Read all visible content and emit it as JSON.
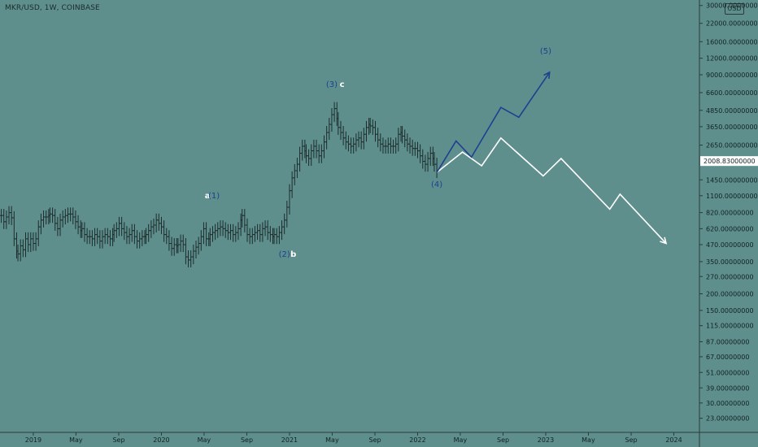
{
  "header": {
    "title": "MKR/USD, 1W, COINBASE",
    "scale_badge": "USD"
  },
  "price_badge": {
    "value": "2008.83000000",
    "bg": "#ffffff",
    "fg": "#000000"
  },
  "colors": {
    "background": "#5e8f8d",
    "candles": "#1d2c2c",
    "blue_path": "#1f3f8f",
    "white_path": "#ffffff",
    "axis_text": "#112222"
  },
  "chart_data": {
    "type": "line",
    "title": "MKR/USD, 1W, COINBASE",
    "y_scale": "log",
    "ylim": [
      18,
      33000
    ],
    "y_ticks": [
      {
        "v": 30000,
        "label": "30000.00000000"
      },
      {
        "v": 22000,
        "label": "22000.00000000"
      },
      {
        "v": 16000,
        "label": "16000.00000000"
      },
      {
        "v": 12000,
        "label": "12000.00000000"
      },
      {
        "v": 9000,
        "label": "9000.00000000"
      },
      {
        "v": 6600,
        "label": "6600.00000000"
      },
      {
        "v": 4850,
        "label": "4850.00000000"
      },
      {
        "v": 3650,
        "label": "3650.00000000"
      },
      {
        "v": 2650,
        "label": "2650.00000000"
      },
      {
        "v": 1450,
        "label": "1450.00000000"
      },
      {
        "v": 1100,
        "label": "1100.00000000"
      },
      {
        "v": 820,
        "label": "820.00000000"
      },
      {
        "v": 620,
        "label": "620.00000000"
      },
      {
        "v": 470,
        "label": "470.00000000"
      },
      {
        "v": 350,
        "label": "350.00000000"
      },
      {
        "v": 270,
        "label": "270.00000000"
      },
      {
        "v": 200,
        "label": "200.00000000"
      },
      {
        "v": 150,
        "label": "150.00000000"
      },
      {
        "v": 115,
        "label": "115.00000000"
      },
      {
        "v": 87,
        "label": "87.00000000"
      },
      {
        "v": 67,
        "label": "67.00000000"
      },
      {
        "v": 51,
        "label": "51.00000000"
      },
      {
        "v": 39,
        "label": "39.00000000"
      },
      {
        "v": 30,
        "label": "30.00000000"
      },
      {
        "v": 23,
        "label": "23.00000000"
      }
    ],
    "x_ticks": [
      {
        "t": 2019.0,
        "label": "2019"
      },
      {
        "t": 2019.333,
        "label": "May"
      },
      {
        "t": 2019.667,
        "label": "Sep"
      },
      {
        "t": 2020.0,
        "label": "2020"
      },
      {
        "t": 2020.333,
        "label": "May"
      },
      {
        "t": 2020.667,
        "label": "Sep"
      },
      {
        "t": 2021.0,
        "label": "2021"
      },
      {
        "t": 2021.333,
        "label": "May"
      },
      {
        "t": 2021.667,
        "label": "Sep"
      },
      {
        "t": 2022.0,
        "label": "2022"
      },
      {
        "t": 2022.333,
        "label": "May"
      },
      {
        "t": 2022.667,
        "label": "Sep"
      },
      {
        "t": 2023.0,
        "label": "2023"
      },
      {
        "t": 2023.333,
        "label": "May"
      },
      {
        "t": 2023.667,
        "label": "Sep"
      },
      {
        "t": 2024.0,
        "label": "2024"
      }
    ],
    "xlim": [
      2018.74,
      2024.2
    ],
    "last_price": 2008.83,
    "series": [
      {
        "values": [
          [
            2018.75,
            780
          ],
          [
            2018.77,
            700
          ],
          [
            2018.79,
            760
          ],
          [
            2018.81,
            820
          ],
          [
            2018.83,
            750
          ],
          [
            2018.85,
            520
          ],
          [
            2018.87,
            420
          ],
          [
            2018.88,
            400
          ],
          [
            2018.9,
            460
          ],
          [
            2018.92,
            430
          ],
          [
            2018.94,
            520
          ],
          [
            2018.96,
            470
          ],
          [
            2018.98,
            520
          ],
          [
            2019.0,
            480
          ],
          [
            2019.02,
            520
          ],
          [
            2019.04,
            640
          ],
          [
            2019.06,
            720
          ],
          [
            2019.08,
            760
          ],
          [
            2019.1,
            760
          ],
          [
            2019.12,
            780
          ],
          [
            2019.13,
            800
          ],
          [
            2019.15,
            780
          ],
          [
            2019.17,
            680
          ],
          [
            2019.19,
            620
          ],
          [
            2019.21,
            720
          ],
          [
            2019.23,
            760
          ],
          [
            2019.25,
            780
          ],
          [
            2019.27,
            800
          ],
          [
            2019.29,
            800
          ],
          [
            2019.31,
            760
          ],
          [
            2019.33,
            700
          ],
          [
            2019.35,
            640
          ],
          [
            2019.37,
            600
          ],
          [
            2019.38,
            620
          ],
          [
            2019.4,
            560
          ],
          [
            2019.42,
            540
          ],
          [
            2019.44,
            540
          ],
          [
            2019.46,
            520
          ],
          [
            2019.48,
            560
          ],
          [
            2019.5,
            540
          ],
          [
            2019.52,
            500
          ],
          [
            2019.54,
            540
          ],
          [
            2019.56,
            560
          ],
          [
            2019.58,
            540
          ],
          [
            2019.6,
            520
          ],
          [
            2019.62,
            560
          ],
          [
            2019.63,
            600
          ],
          [
            2019.65,
            620
          ],
          [
            2019.67,
            680
          ],
          [
            2019.69,
            620
          ],
          [
            2019.71,
            580
          ],
          [
            2019.73,
            540
          ],
          [
            2019.75,
            560
          ],
          [
            2019.77,
            600
          ],
          [
            2019.79,
            540
          ],
          [
            2019.81,
            500
          ],
          [
            2019.83,
            520
          ],
          [
            2019.85,
            540
          ],
          [
            2019.87,
            540
          ],
          [
            2019.88,
            560
          ],
          [
            2019.9,
            600
          ],
          [
            2019.92,
            640
          ],
          [
            2019.94,
            660
          ],
          [
            2019.96,
            720
          ],
          [
            2019.98,
            680
          ],
          [
            2020.0,
            640
          ],
          [
            2020.02,
            560
          ],
          [
            2020.04,
            540
          ],
          [
            2020.06,
            480
          ],
          [
            2020.08,
            440
          ],
          [
            2020.1,
            470
          ],
          [
            2020.12,
            460
          ],
          [
            2020.13,
            470
          ],
          [
            2020.15,
            500
          ],
          [
            2020.17,
            470
          ],
          [
            2020.19,
            380
          ],
          [
            2020.21,
            360
          ],
          [
            2020.23,
            380
          ],
          [
            2020.25,
            420
          ],
          [
            2020.27,
            450
          ],
          [
            2020.29,
            480
          ],
          [
            2020.31,
            540
          ],
          [
            2020.33,
            620
          ],
          [
            2020.35,
            520
          ],
          [
            2020.37,
            520
          ],
          [
            2020.38,
            560
          ],
          [
            2020.4,
            580
          ],
          [
            2020.42,
            600
          ],
          [
            2020.44,
            620
          ],
          [
            2020.46,
            640
          ],
          [
            2020.48,
            620
          ],
          [
            2020.5,
            600
          ],
          [
            2020.52,
            580
          ],
          [
            2020.54,
            600
          ],
          [
            2020.56,
            560
          ],
          [
            2020.58,
            580
          ],
          [
            2020.6,
            620
          ],
          [
            2020.62,
            720
          ],
          [
            2020.63,
            780
          ],
          [
            2020.65,
            660
          ],
          [
            2020.67,
            560
          ],
          [
            2020.69,
            540
          ],
          [
            2020.71,
            560
          ],
          [
            2020.73,
            580
          ],
          [
            2020.75,
            600
          ],
          [
            2020.77,
            560
          ],
          [
            2020.79,
            620
          ],
          [
            2020.81,
            640
          ],
          [
            2020.83,
            580
          ],
          [
            2020.85,
            560
          ],
          [
            2020.87,
            540
          ],
          [
            2020.88,
            560
          ],
          [
            2020.9,
            540
          ],
          [
            2020.92,
            580
          ],
          [
            2020.94,
            640
          ],
          [
            2020.96,
            720
          ],
          [
            2020.98,
            900
          ],
          [
            2021.0,
            1200
          ],
          [
            2021.02,
            1500
          ],
          [
            2021.04,
            1700
          ],
          [
            2021.06,
            1900
          ],
          [
            2021.08,
            2300
          ],
          [
            2021.1,
            2600
          ],
          [
            2021.12,
            2400
          ],
          [
            2021.13,
            2200
          ],
          [
            2021.15,
            2100
          ],
          [
            2021.17,
            2400
          ],
          [
            2021.19,
            2600
          ],
          [
            2021.21,
            2400
          ],
          [
            2021.23,
            2200
          ],
          [
            2021.25,
            2400
          ],
          [
            2021.27,
            2800
          ],
          [
            2021.29,
            3300
          ],
          [
            2021.31,
            3800
          ],
          [
            2021.33,
            4500
          ],
          [
            2021.35,
            5000
          ],
          [
            2021.37,
            4200
          ],
          [
            2021.38,
            3600
          ],
          [
            2021.4,
            3300
          ],
          [
            2021.42,
            3000
          ],
          [
            2021.44,
            2800
          ],
          [
            2021.46,
            2700
          ],
          [
            2021.48,
            2600
          ],
          [
            2021.5,
            2700
          ],
          [
            2021.52,
            2900
          ],
          [
            2021.54,
            3000
          ],
          [
            2021.56,
            2800
          ],
          [
            2021.58,
            3200
          ],
          [
            2021.6,
            3600
          ],
          [
            2021.62,
            3800
          ],
          [
            2021.63,
            3700
          ],
          [
            2021.65,
            3600
          ],
          [
            2021.67,
            3200
          ],
          [
            2021.69,
            2900
          ],
          [
            2021.71,
            2700
          ],
          [
            2021.73,
            2600
          ],
          [
            2021.75,
            2600
          ],
          [
            2021.77,
            2700
          ],
          [
            2021.79,
            2600
          ],
          [
            2021.81,
            2600
          ],
          [
            2021.83,
            2700
          ],
          [
            2021.85,
            3200
          ],
          [
            2021.87,
            3300
          ],
          [
            2021.88,
            3100
          ],
          [
            2021.9,
            2900
          ],
          [
            2021.92,
            2700
          ],
          [
            2021.94,
            2600
          ],
          [
            2021.96,
            2500
          ],
          [
            2021.98,
            2500
          ],
          [
            2022.0,
            2400
          ],
          [
            2022.02,
            2200
          ],
          [
            2022.04,
            2000
          ],
          [
            2022.06,
            1900
          ],
          [
            2022.08,
            2100
          ],
          [
            2022.1,
            2300
          ],
          [
            2022.12,
            2100
          ],
          [
            2022.13,
            1900
          ],
          [
            2022.15,
            1700
          ]
        ]
      },
      {
        "name": "",
        "color": "#1f3f8f",
        "values": [
          [
            2022.15,
            1650
          ],
          [
            2022.3,
            2850
          ],
          [
            2022.42,
            2150
          ],
          [
            2022.65,
            5100
          ],
          [
            2022.79,
            4300
          ],
          [
            2023.03,
            9400
          ]
        ]
      },
      {
        "name": "",
        "color": "#ffffff",
        "values": [
          [
            2022.15,
            1650
          ],
          [
            2022.35,
            2350
          ],
          [
            2022.5,
            1850
          ],
          [
            2022.65,
            3000
          ],
          [
            2022.98,
            1550
          ],
          [
            2023.12,
            2100
          ],
          [
            2023.5,
            870
          ],
          [
            2023.58,
            1130
          ],
          [
            2023.94,
            480
          ]
        ]
      }
    ],
    "annotations": [
      {
        "text": "a",
        "t": 2020.36,
        "v": 1050,
        "color": "#ffffff"
      },
      {
        "text": "(1)",
        "t": 2020.41,
        "v": 1050,
        "color": "#1f3f8f"
      },
      {
        "text": "(2)",
        "t": 2020.96,
        "v": 380,
        "color": "#1f3f8f"
      },
      {
        "text": "b",
        "t": 2021.03,
        "v": 380,
        "color": "#ffffff"
      },
      {
        "text": "(3)",
        "t": 2021.33,
        "v": 7300,
        "color": "#1f3f8f"
      },
      {
        "text": "c",
        "t": 2021.41,
        "v": 7300,
        "color": "#ffffff"
      },
      {
        "text": "(4)",
        "t": 2022.15,
        "v": 1280,
        "color": "#1f3f8f"
      },
      {
        "text": "(5)",
        "t": 2023.0,
        "v": 13000,
        "color": "#1f3f8f"
      }
    ]
  }
}
